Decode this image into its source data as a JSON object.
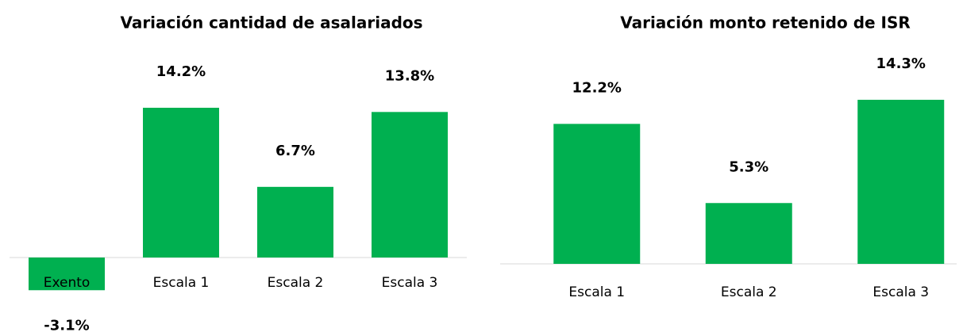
{
  "chart_data": [
    {
      "type": "bar",
      "title": "Variación cantidad de asalariados",
      "categories": [
        "Exento",
        "Escala 1",
        "Escala 2",
        "Escala 3"
      ],
      "values": [
        -3.1,
        14.2,
        6.7,
        13.8
      ],
      "value_labels": [
        "-3.1%",
        "14.2%",
        "6.7%",
        "13.8%"
      ],
      "color": "#00b050"
    },
    {
      "type": "bar",
      "title": "Variación monto retenido de ISR",
      "categories": [
        "Escala 1",
        "Escala 2",
        "Escala 3"
      ],
      "values": [
        12.2,
        5.3,
        14.3
      ],
      "value_labels": [
        "12.2%",
        "5.3%",
        "14.3%"
      ],
      "color": "#00b050"
    }
  ]
}
